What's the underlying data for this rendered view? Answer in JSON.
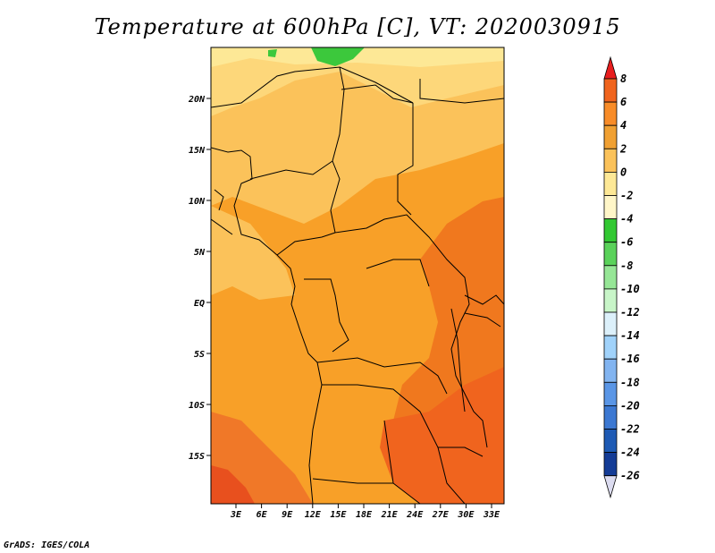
{
  "title": "Temperature at 600hPa [C], VT: 2020030915",
  "credit": "GrADS: IGES/COLA",
  "map": {
    "lat_labels": [
      "20N",
      "15N",
      "10N",
      "5N",
      "EQ",
      "5S",
      "10S",
      "15S"
    ],
    "lon_labels": [
      "3E",
      "6E",
      "9E",
      "12E",
      "15E",
      "18E",
      "21E",
      "24E",
      "27E",
      "30E",
      "33E"
    ]
  },
  "colorbar": {
    "levels": [
      "8",
      "6",
      "4",
      "2",
      "0",
      "-2",
      "-4",
      "-6",
      "-8",
      "-10",
      "-12",
      "-14",
      "-16",
      "-18",
      "-20",
      "-22",
      "-24",
      "-26"
    ],
    "colors": [
      "#e8461e",
      "#f0641e",
      "#f88c28",
      "#f0a032",
      "#fbc25a",
      "#fde896",
      "#fff6c8",
      "#32c832",
      "#5ad25a",
      "#96e696",
      "#c8f5c8",
      "#dcf0fa",
      "#a0d2fa",
      "#82b4f0",
      "#5a96e6",
      "#3c78d2",
      "#1e5ab4",
      "#143c96",
      "#0a1e6e",
      "#dcdcf0"
    ],
    "top_arrow_color": "#e81e1e",
    "bottom_arrow_color": "#dcdcf0"
  }
}
